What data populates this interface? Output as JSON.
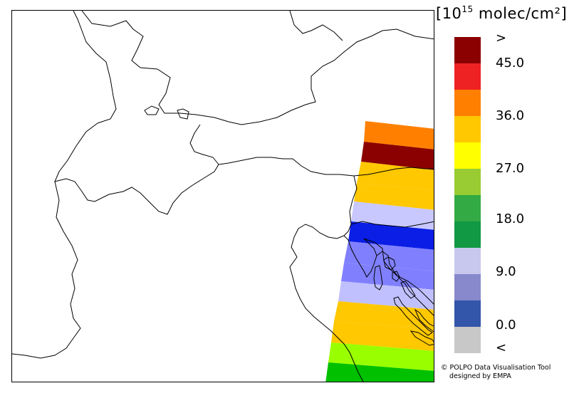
{
  "legend": {
    "unit_prefix": "[10",
    "unit_exponent": "15",
    "unit_suffix": " molec/cm²]",
    "tick_labels": [
      ">",
      "45.0",
      "36.0",
      "27.0",
      "18.0",
      "9.0",
      "0.0",
      "<"
    ],
    "color_bins": [
      {
        "color": "#8b0000",
        "label": "above range"
      },
      {
        "color": "#ee2222",
        "label": "45.0 and up"
      },
      {
        "color": "#ff8000",
        "label": ""
      },
      {
        "color": "#ffc800",
        "label": "36.0"
      },
      {
        "color": "#ffff00",
        "label": ""
      },
      {
        "color": "#99cc33",
        "label": "27.0"
      },
      {
        "color": "#33aa44",
        "label": ""
      },
      {
        "color": "#119944",
        "label": "18.0"
      },
      {
        "color": "#c8c8ee",
        "label": ""
      },
      {
        "color": "#8888cc",
        "label": "9.0"
      },
      {
        "color": "#3355aa",
        "label": ""
      },
      {
        "color": "#c8c8c8",
        "label": "below range"
      }
    ]
  },
  "swath": {
    "bands": [
      {
        "color": "#ff8000"
      },
      {
        "color": "#8b0000"
      },
      {
        "color": "#ffc800"
      },
      {
        "color": "#ffc800"
      },
      {
        "color": "#c8c8ff"
      },
      {
        "color": "#0a1ee6"
      },
      {
        "color": "#8080ff"
      },
      {
        "color": "#8080ff"
      },
      {
        "color": "#c0c0ff"
      },
      {
        "color": "#ffc800"
      },
      {
        "color": "#ffc800"
      },
      {
        "color": "#99ff00"
      },
      {
        "color": "#00c000"
      }
    ]
  },
  "credit": {
    "line1": "© POLPO Data Visualisation Tool",
    "line2": "designed by EMPA"
  }
}
